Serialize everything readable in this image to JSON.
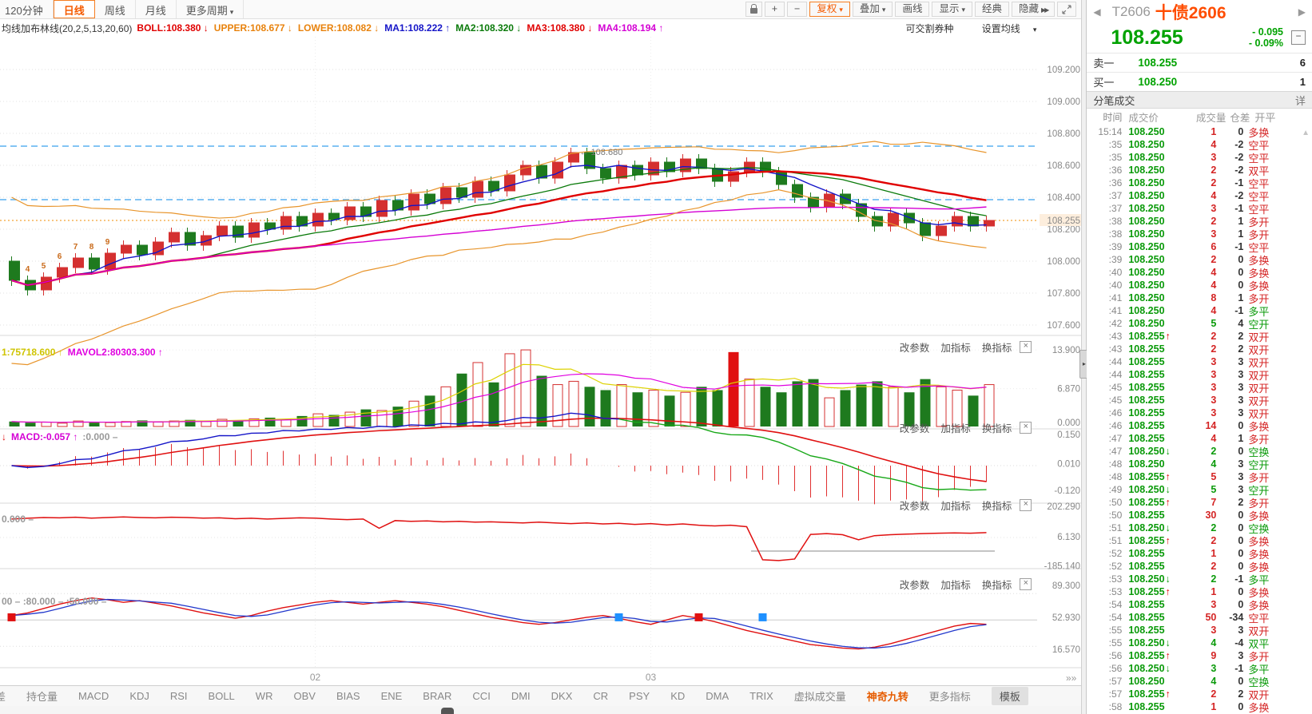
{
  "toolbar": {
    "periods": [
      {
        "label": "120分钟",
        "active": false
      },
      {
        "label": "日线",
        "active": true
      },
      {
        "label": "周线",
        "active": false
      },
      {
        "label": "月线",
        "active": false
      },
      {
        "label": "更多周期",
        "active": false,
        "caret": true
      }
    ],
    "plus": "+",
    "minus": "−",
    "buttons": [
      {
        "label": "复权",
        "caret": true,
        "accent": true
      },
      {
        "label": "叠加",
        "caret": true
      },
      {
        "label": "画线"
      },
      {
        "label": "显示",
        "caret": true
      },
      {
        "label": "经典"
      },
      {
        "label": "隐藏",
        "chev": true
      }
    ]
  },
  "indicator_bar": {
    "title": "均线加布林线(20,2,5,13,20,60)",
    "items": [
      {
        "label": "BOLL:108.380 ↓",
        "color": "#e00000"
      },
      {
        "label": "UPPER:108.677 ↓",
        "color": "#e8820c"
      },
      {
        "label": "LOWER:108.082 ↓",
        "color": "#e8820c"
      },
      {
        "label": "MA1:108.222 ↑",
        "color": "#1515c8"
      },
      {
        "label": "MA2:108.320 ↓",
        "color": "#0a7a0a"
      },
      {
        "label": "MA3:108.380 ↓",
        "color": "#e00000"
      },
      {
        "label": "MA4:108.194 ↑",
        "color": "#d400d4"
      }
    ],
    "right1": "可交割券种",
    "right2": "设置均线"
  },
  "panels": {
    "links": [
      "改参数",
      "加指标",
      "换指标"
    ],
    "vol": [
      {
        "t": "1:75718.600 ↑",
        "c": "#cfc400"
      },
      {
        "t": "MAVOL2:80303.300 ↑",
        "c": "#e000e0"
      }
    ],
    "macd": [
      {
        "t": "↓",
        "c": "#e01010"
      },
      {
        "t": "MACD:-0.057 ↑",
        "c": "#d400d4"
      },
      {
        "t": ":0.000 –",
        "c": "#999999"
      }
    ],
    "p3": [
      {
        "t": "0.000 –",
        "c": "#999999"
      }
    ],
    "p4": [
      {
        "t": "00 – :80.000 – :50.000 –",
        "c": "#999999"
      }
    ]
  },
  "tabs": {
    "items": [
      "差",
      "持仓量",
      "MACD",
      "KDJ",
      "RSI",
      "BOLL",
      "WR",
      "OBV",
      "BIAS",
      "ENE",
      "BRAR",
      "CCI",
      "DMI",
      "DKX",
      "CR",
      "PSY",
      "KD",
      "DMA",
      "TRIX",
      "虚拟成交量",
      "神奇九转",
      "更多指标",
      "模板"
    ],
    "active": "神奇九转",
    "chip": "模板"
  },
  "quote": {
    "code": "T2606",
    "name": "十债2606",
    "last": "108.255",
    "chg": "- 0.095",
    "chg_pct": "- 0.09%",
    "ask_label": "卖一",
    "ask_price": "108.255",
    "ask_vol": "6",
    "bid_label": "买一",
    "bid_price": "108.250",
    "bid_vol": "1",
    "ticks_title": "分笔成交",
    "detail_link": "详",
    "cols": [
      "时间",
      "成交价",
      "成交量",
      "仓差",
      "开平"
    ],
    "ticks": [
      [
        "15:14",
        "108.250",
        "",
        1,
        "r",
        0,
        "多换",
        "r"
      ],
      [
        ":35",
        "108.250",
        "",
        4,
        "r",
        -2,
        "空平",
        "r"
      ],
      [
        ":35",
        "108.250",
        "",
        3,
        "r",
        -2,
        "空平",
        "r"
      ],
      [
        ":36",
        "108.250",
        "",
        2,
        "r",
        -2,
        "双平",
        "r"
      ],
      [
        ":36",
        "108.250",
        "",
        2,
        "r",
        -1,
        "空平",
        "r"
      ],
      [
        ":37",
        "108.250",
        "",
        4,
        "r",
        -2,
        "空平",
        "r"
      ],
      [
        ":37",
        "108.250",
        "",
        3,
        "r",
        -1,
        "空平",
        "r"
      ],
      [
        ":38",
        "108.250",
        "",
        2,
        "r",
        1,
        "多开",
        "r"
      ],
      [
        ":38",
        "108.250",
        "",
        3,
        "r",
        1,
        "多开",
        "r"
      ],
      [
        ":39",
        "108.250",
        "",
        6,
        "r",
        -1,
        "空平",
        "r"
      ],
      [
        ":39",
        "108.250",
        "",
        2,
        "r",
        0,
        "多换",
        "r"
      ],
      [
        ":40",
        "108.250",
        "",
        4,
        "r",
        0,
        "多换",
        "r"
      ],
      [
        ":40",
        "108.250",
        "",
        4,
        "r",
        0,
        "多换",
        "r"
      ],
      [
        ":41",
        "108.250",
        "",
        8,
        "r",
        1,
        "多开",
        "r"
      ],
      [
        ":41",
        "108.250",
        "",
        4,
        "r",
        -1,
        "多平",
        "g"
      ],
      [
        ":42",
        "108.250",
        "",
        5,
        "g",
        4,
        "空开",
        "g"
      ],
      [
        ":43",
        "108.255",
        "u",
        2,
        "r",
        2,
        "双开",
        "r"
      ],
      [
        ":43",
        "108.255",
        "",
        2,
        "r",
        2,
        "双开",
        "r"
      ],
      [
        ":44",
        "108.255",
        "",
        3,
        "r",
        3,
        "双开",
        "r"
      ],
      [
        ":44",
        "108.255",
        "",
        3,
        "r",
        3,
        "双开",
        "r"
      ],
      [
        ":45",
        "108.255",
        "",
        3,
        "r",
        3,
        "双开",
        "r"
      ],
      [
        ":45",
        "108.255",
        "",
        3,
        "r",
        3,
        "双开",
        "r"
      ],
      [
        ":46",
        "108.255",
        "",
        3,
        "r",
        3,
        "双开",
        "r"
      ],
      [
        ":46",
        "108.255",
        "",
        14,
        "r",
        0,
        "多换",
        "r"
      ],
      [
        ":47",
        "108.255",
        "",
        4,
        "r",
        1,
        "多开",
        "r"
      ],
      [
        ":47",
        "108.250",
        "d",
        2,
        "g",
        0,
        "空换",
        "g"
      ],
      [
        ":48",
        "108.250",
        "",
        4,
        "g",
        3,
        "空开",
        "g"
      ],
      [
        ":48",
        "108.255",
        "u",
        5,
        "r",
        3,
        "多开",
        "r"
      ],
      [
        ":49",
        "108.250",
        "d",
        5,
        "g",
        3,
        "空开",
        "g"
      ],
      [
        ":50",
        "108.255",
        "u",
        7,
        "r",
        2,
        "多开",
        "r"
      ],
      [
        ":50",
        "108.255",
        "",
        30,
        "r",
        0,
        "多换",
        "r"
      ],
      [
        ":51",
        "108.250",
        "d",
        2,
        "g",
        0,
        "空换",
        "g"
      ],
      [
        ":51",
        "108.255",
        "u",
        2,
        "r",
        0,
        "多换",
        "r"
      ],
      [
        ":52",
        "108.255",
        "",
        1,
        "r",
        0,
        "多换",
        "r"
      ],
      [
        ":52",
        "108.255",
        "",
        2,
        "r",
        0,
        "多换",
        "r"
      ],
      [
        ":53",
        "108.250",
        "d",
        2,
        "g",
        -1,
        "多平",
        "g"
      ],
      [
        ":53",
        "108.255",
        "u",
        1,
        "r",
        0,
        "多换",
        "r"
      ],
      [
        ":54",
        "108.255",
        "",
        3,
        "r",
        0,
        "多换",
        "r"
      ],
      [
        ":54",
        "108.255",
        "",
        50,
        "r",
        -34,
        "空平",
        "r"
      ],
      [
        ":55",
        "108.255",
        "",
        3,
        "r",
        3,
        "双开",
        "r"
      ],
      [
        ":55",
        "108.250",
        "d",
        4,
        "g",
        -4,
        "双平",
        "g"
      ],
      [
        ":56",
        "108.255",
        "u",
        9,
        "r",
        3,
        "多开",
        "r"
      ],
      [
        ":56",
        "108.250",
        "d",
        3,
        "g",
        -1,
        "多平",
        "g"
      ],
      [
        ":57",
        "108.250",
        "",
        4,
        "g",
        0,
        "空换",
        "g"
      ],
      [
        ":57",
        "108.255",
        "u",
        2,
        "r",
        2,
        "双开",
        "r"
      ],
      [
        ":58",
        "108.255",
        "",
        1,
        "r",
        0,
        "多换",
        "r"
      ]
    ]
  },
  "chart_data": {
    "type": "candlestick",
    "title": "十债2606 日线 (均线加布林线 20,2,5,13,20,60)",
    "first_open": 108.0,
    "closes": [
      107.88,
      107.82,
      107.9,
      107.96,
      108.02,
      107.95,
      108.05,
      108.1,
      108.04,
      108.12,
      108.18,
      108.1,
      108.16,
      108.22,
      108.15,
      108.24,
      108.2,
      108.28,
      108.22,
      108.3,
      108.26,
      108.34,
      108.28,
      108.38,
      108.32,
      108.42,
      108.36,
      108.46,
      108.4,
      108.5,
      108.44,
      108.54,
      108.6,
      108.52,
      108.62,
      108.68,
      108.58,
      108.52,
      108.6,
      108.54,
      108.62,
      108.56,
      108.64,
      108.58,
      108.5,
      108.56,
      108.62,
      108.56,
      108.48,
      108.4,
      108.34,
      108.42,
      108.36,
      108.28,
      108.22,
      108.3,
      108.24,
      108.16,
      108.22,
      108.28,
      108.22,
      108.255
    ],
    "volumes": [
      0.9,
      0.7,
      0.8,
      0.6,
      1.0,
      0.8,
      0.7,
      0.9,
      1.1,
      0.8,
      1.0,
      1.2,
      0.9,
      1.3,
      1.1,
      1.4,
      1.6,
      1.3,
      1.9,
      2.3,
      2.1,
      2.6,
      3.1,
      2.9,
      3.6,
      4.6,
      5.6,
      7.2,
      9.6,
      11.6,
      8.0,
      13.2,
      13.9,
      9.2,
      7.6,
      8.2,
      7.2,
      6.6,
      7.6,
      6.2,
      6.6,
      5.6,
      6.2,
      7.2,
      6.6,
      13.5,
      8.6,
      7.2,
      6.2,
      8.2,
      8.6,
      5.2,
      6.6,
      7.6,
      8.2,
      7.2,
      6.2,
      8.6,
      7.2,
      6.6,
      5.6,
      7.6
    ],
    "special_vol": 45,
    "p3": [
      120,
      125,
      130,
      128,
      132,
      126,
      130,
      134,
      130,
      128,
      132,
      130,
      126,
      128,
      122,
      125,
      120,
      124,
      128,
      126,
      120,
      116,
      120,
      60,
      110,
      105,
      108,
      102,
      105,
      100,
      102,
      98,
      95,
      100,
      95,
      90,
      95,
      88,
      92,
      85,
      90,
      82,
      88,
      80,
      75,
      80,
      70,
      -145,
      -150,
      -140,
      20,
      25,
      18,
      -15,
      12,
      18,
      22,
      25,
      28,
      30,
      28,
      32
    ],
    "kd_k": [
      55,
      58,
      63,
      68,
      72,
      75,
      73,
      70,
      72,
      69,
      66,
      62,
      58,
      55,
      52,
      55,
      60,
      64,
      67,
      70,
      72,
      70,
      68,
      70,
      72,
      70,
      68,
      65,
      61,
      57,
      53,
      50,
      47,
      45,
      47,
      50,
      53,
      55,
      52,
      48,
      45,
      50,
      55,
      52,
      48,
      43,
      38,
      34,
      30,
      26,
      22,
      20,
      18,
      17,
      19,
      23,
      28,
      33,
      38,
      43,
      46,
      45
    ],
    "axis": {
      "main": [
        109.2,
        109.0,
        108.8,
        108.6,
        108.4,
        108.2,
        108.0,
        107.8,
        107.6
      ],
      "vol": [
        13.9,
        6.87,
        0
      ],
      "macd": [
        0.15,
        0.01,
        -0.12
      ],
      "p3": [
        202.29,
        6.13,
        -185.14
      ],
      "p4": [
        89.3,
        52.93,
        16.57
      ]
    },
    "hlines": {
      "blue_dashed": [
        108.72,
        108.385
      ],
      "price_line": 108.255
    },
    "annotation": {
      "text": "← 108.680",
      "i": 35,
      "price": 108.68
    },
    "x_labels": [
      {
        "t": "02",
        "i": 19
      },
      {
        "t": "03",
        "i": 40
      }
    ],
    "markers": [
      {
        "i": 0,
        "c": "red"
      },
      {
        "i": 38,
        "c": "blue"
      },
      {
        "i": 43,
        "c": "red"
      },
      {
        "i": 47,
        "c": "blue"
      }
    ],
    "td": [
      {
        "i": 1,
        "n": "4"
      },
      {
        "i": 2,
        "n": "5"
      },
      {
        "i": 3,
        "n": "6"
      },
      {
        "i": 4,
        "n": "7"
      },
      {
        "i": 5,
        "n": "8"
      },
      {
        "i": 6,
        "n": "9"
      }
    ],
    "more_arrow": "»",
    "legend_position": "top-left",
    "grid": true
  }
}
